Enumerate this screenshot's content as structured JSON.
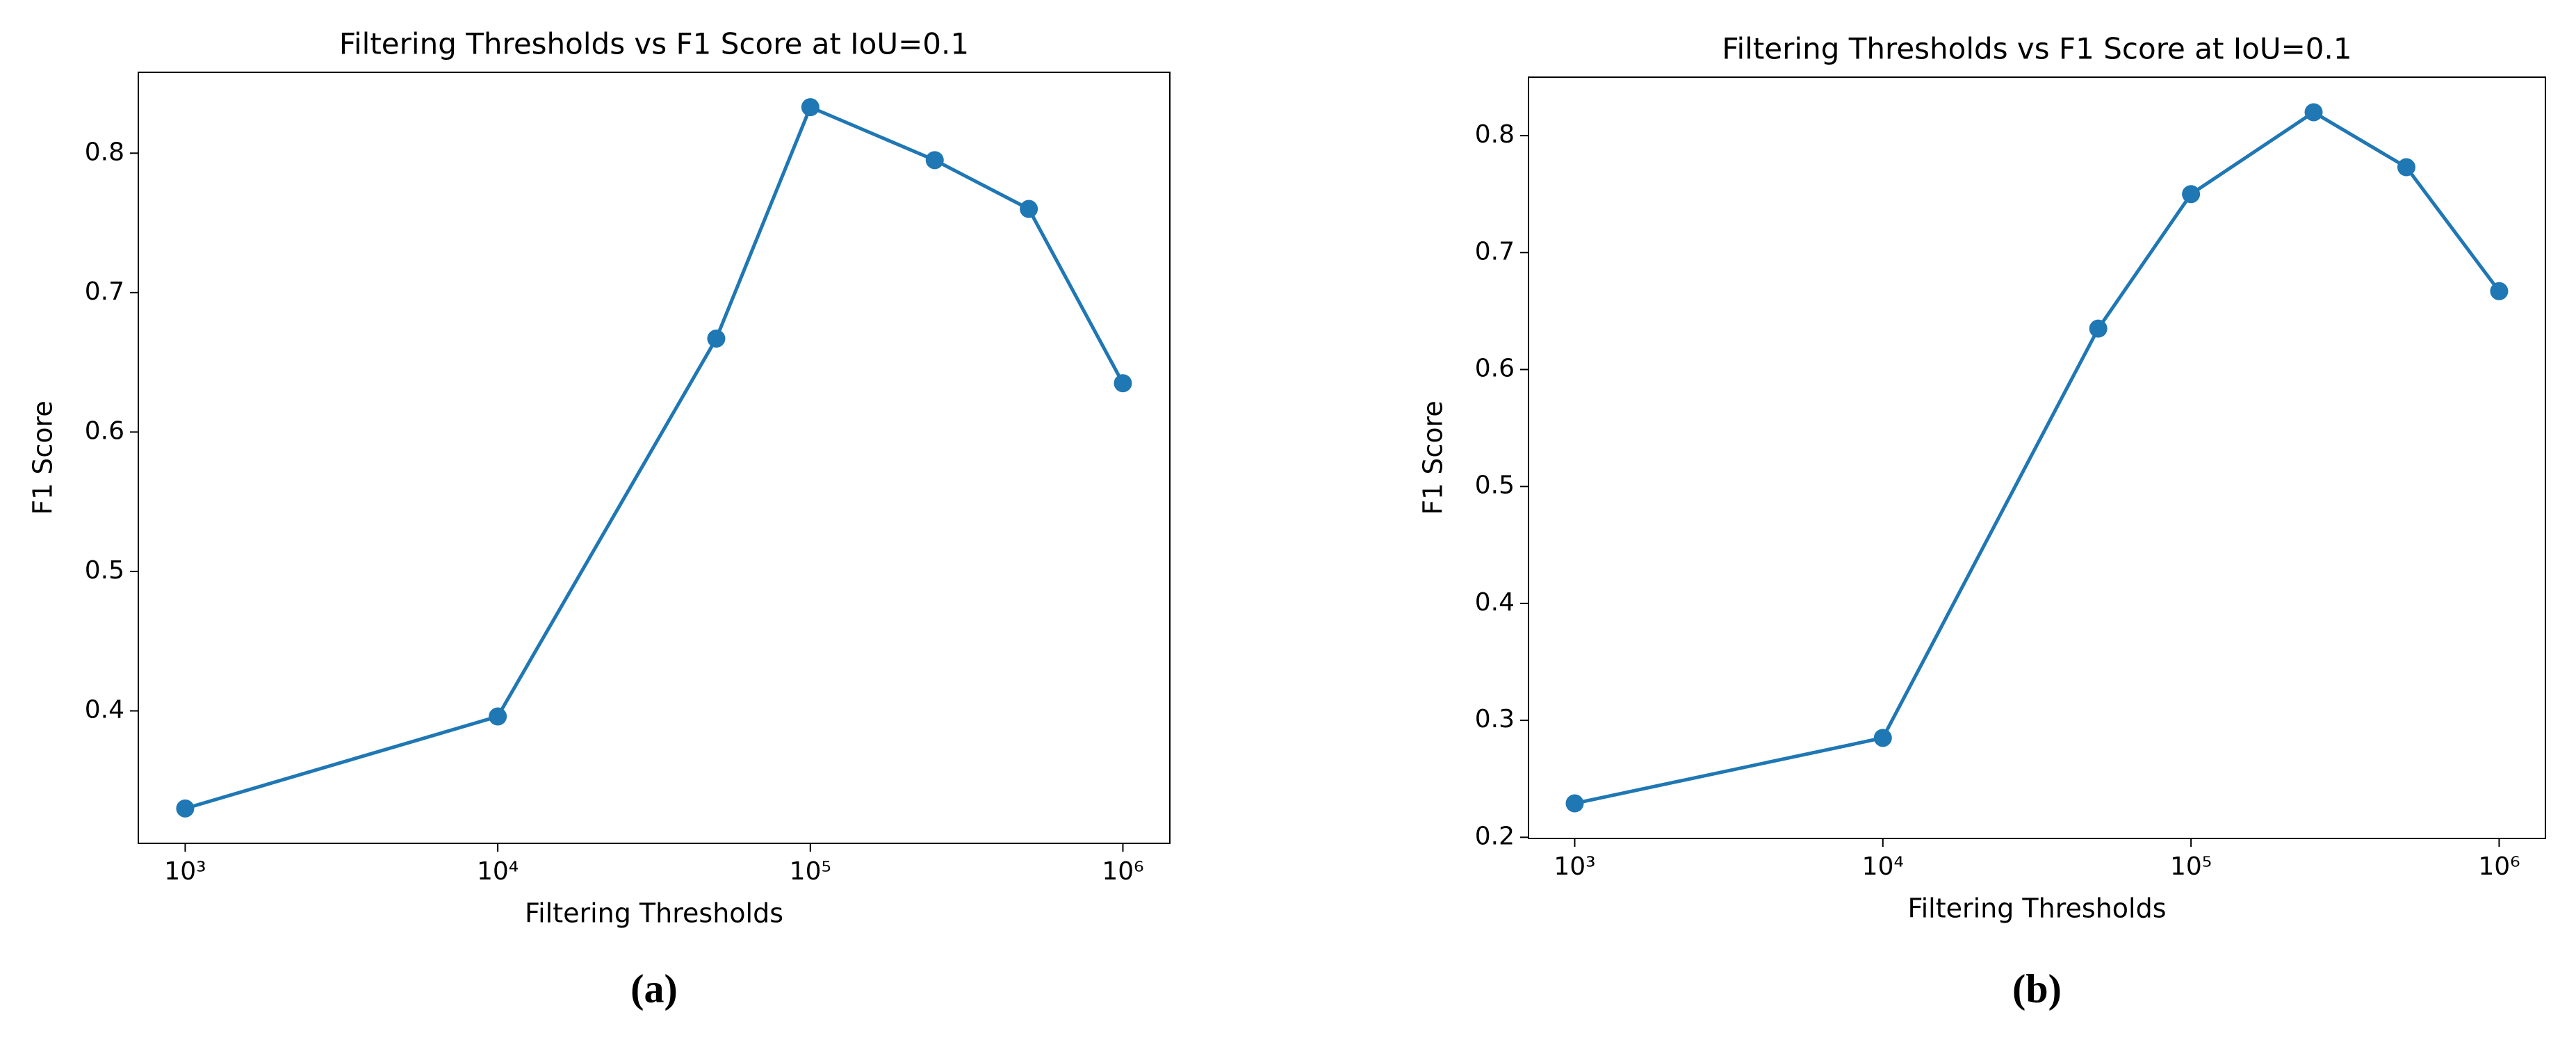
{
  "chart_data": [
    {
      "type": "line",
      "title": "Filtering Thresholds vs F1 Score at IoU=0.1",
      "caption": "(a)",
      "x_label": "Filtering Thresholds",
      "y_label": "F1 Score",
      "x_scale": "log",
      "grid": false,
      "x": [
        1000,
        10000,
        50000,
        100000,
        250000,
        500000,
        1000000
      ],
      "series": [
        {
          "color": "#1f77b4",
          "values": [
            0.33,
            0.396,
            0.667,
            0.833,
            0.795,
            0.76,
            0.635
          ]
        }
      ],
      "xlim": [
        708,
        1413000
      ],
      "xticks": [
        {
          "value": 1000,
          "label": "10³"
        },
        {
          "value": 10000,
          "label": "10⁴"
        },
        {
          "value": 100000,
          "label": "10⁵"
        },
        {
          "value": 1000000,
          "label": "10⁶"
        }
      ],
      "ylim": [
        0.305,
        0.858
      ],
      "yticks": [
        0.4,
        0.5,
        0.6,
        0.7,
        0.8
      ]
    },
    {
      "type": "line",
      "title": "Filtering Thresholds vs F1 Score at IoU=0.1",
      "caption": "(b)",
      "x_label": "Filtering Thresholds",
      "y_label": "F1 Score",
      "x_scale": "log",
      "grid": false,
      "x": [
        1000,
        10000,
        50000,
        100000,
        250000,
        500000,
        1000000
      ],
      "series": [
        {
          "color": "#1f77b4",
          "values": [
            0.229,
            0.285,
            0.635,
            0.75,
            0.82,
            0.773,
            0.667
          ]
        }
      ],
      "xlim": [
        708,
        1413000
      ],
      "xticks": [
        {
          "value": 1000,
          "label": "10³"
        },
        {
          "value": 10000,
          "label": "10⁴"
        },
        {
          "value": 100000,
          "label": "10⁵"
        },
        {
          "value": 1000000,
          "label": "10⁶"
        }
      ],
      "ylim": [
        0.199,
        0.85
      ],
      "yticks": [
        0.2,
        0.3,
        0.4,
        0.5,
        0.6,
        0.7,
        0.8
      ]
    }
  ]
}
